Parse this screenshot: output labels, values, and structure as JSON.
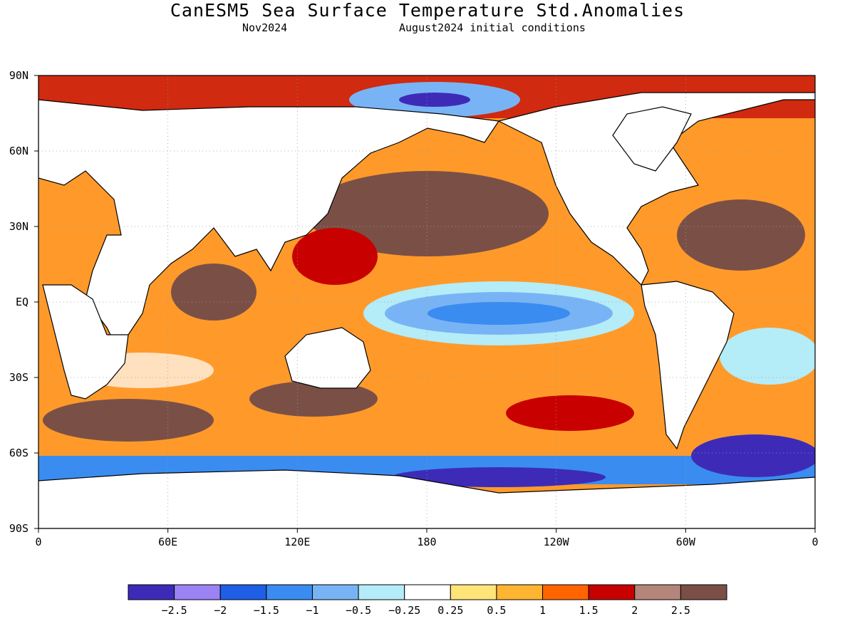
{
  "title": "CanESM5 Sea Surface Temperature Std.Anomalies",
  "subtitle_left": "Nov2024",
  "subtitle_right": "August2024 initial conditions",
  "map": {
    "lat_labels": [
      "90N",
      "60N",
      "30N",
      "EQ",
      "30S",
      "60S",
      "90S"
    ],
    "lon_labels": [
      "0",
      "60E",
      "120E",
      "180",
      "120W",
      "60W",
      "0"
    ],
    "grid": true
  },
  "colorbar": {
    "colors": [
      "#3d2bb8",
      "#9b82f5",
      "#1e5fe6",
      "#3a8cf0",
      "#78b4f5",
      "#b4ecf8",
      "#ffffff",
      "#ffe478",
      "#ffb432",
      "#ff6400",
      "#c80000",
      "#b4857a",
      "#7a5046"
    ],
    "labels": [
      "−2.5",
      "−2",
      "−1.5",
      "−1",
      "−0.5",
      "−0.25",
      "0.25",
      "0.5",
      "1",
      "1.5",
      "2",
      "2.5"
    ]
  }
}
